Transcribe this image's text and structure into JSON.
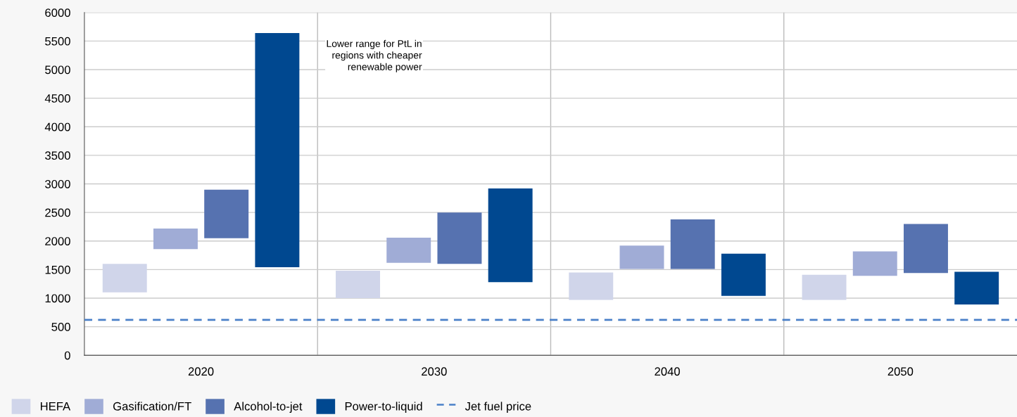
{
  "chart_data": {
    "type": "bar",
    "categories": [
      "2020",
      "2030",
      "2040",
      "2050"
    ],
    "series": [
      {
        "name": "HEFA",
        "color": "#d0d5ea",
        "base": [
          1100,
          1000,
          970,
          970
        ],
        "values": [
          500,
          480,
          480,
          440
        ]
      },
      {
        "name": "Gasification/FT",
        "color": "#a0acd6",
        "base": [
          1860,
          1620,
          1510,
          1390
        ],
        "values": [
          360,
          440,
          410,
          430
        ]
      },
      {
        "name": "Alcohol-to-jet",
        "color": "#5672b0",
        "base": [
          2050,
          1600,
          1510,
          1440
        ],
        "values": [
          850,
          900,
          870,
          860
        ]
      },
      {
        "name": "Power-to-liquid",
        "color": "#004890",
        "base": [
          1540,
          1280,
          1040,
          890
        ],
        "values": [
          4100,
          1640,
          740,
          570
        ]
      }
    ],
    "ref_lines": [
      {
        "axis": "y",
        "value": 620,
        "label": "Jet fuel price",
        "color": "#4a80c8",
        "line_style": "dashed"
      }
    ],
    "annotations": [
      "Lower range for PtL in\nregions with cheaper\nrenewable power"
    ],
    "ylim": [
      0,
      6000
    ],
    "yticks": [
      0,
      500,
      1000,
      1500,
      2000,
      2500,
      3000,
      3500,
      4000,
      4500,
      5000,
      5500,
      6000
    ],
    "grid": true,
    "legend": "bottom"
  }
}
